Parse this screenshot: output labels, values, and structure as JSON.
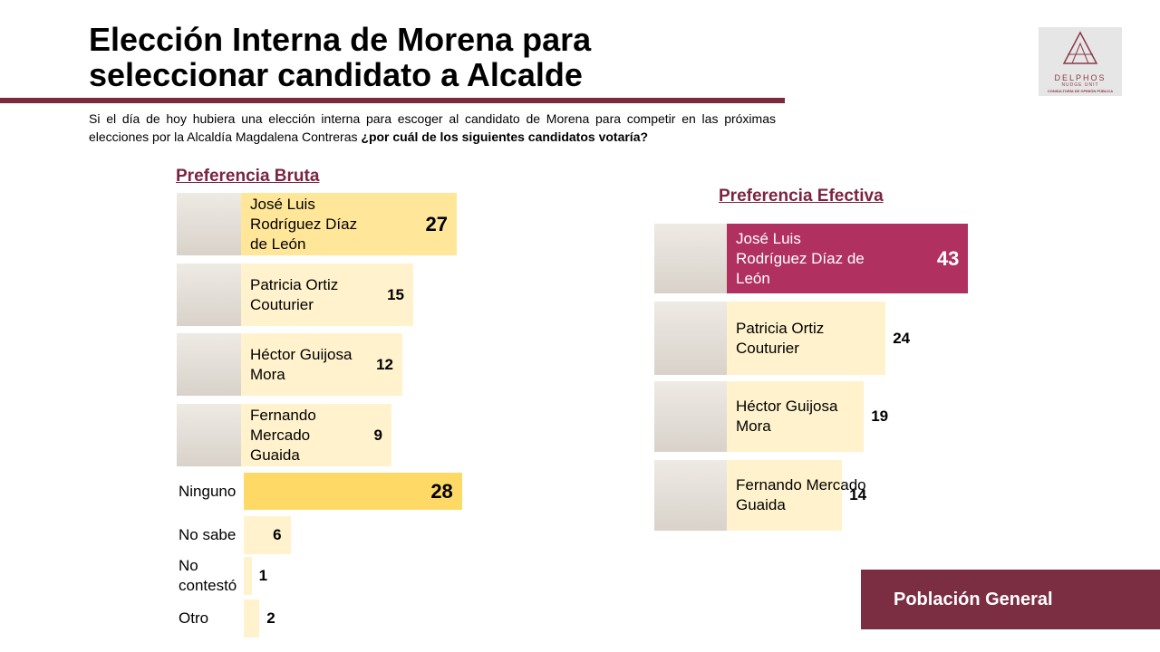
{
  "header": {
    "title": "Elección Interna de Morena para seleccionar candidato a Alcalde",
    "question": "Si el día de hoy hubiera una elección interna para escoger al candidato de Morena para competir en las próximas elecciones por la Alcaldía Magdalena Contreras",
    "question_bold": "¿por cuál de los siguientes candidatos votaría?"
  },
  "logo": {
    "name": "DELPHOS",
    "tagline": "NUDGE UNIT",
    "subtitle": "CONSULTORÍA DE OPINIÓN PÚBLICA"
  },
  "footer": "Población General",
  "chart_data": [
    {
      "type": "bar",
      "orientation": "horizontal",
      "title": "Preferencia Bruta",
      "categories": [
        "José Luis Rodríguez Díaz de León",
        "Patricia Ortiz Couturier",
        "Héctor Guijosa Mora",
        "Fernando Mercado Guaida",
        "Ninguno",
        "No sabe",
        "No contestó",
        "Otro"
      ],
      "values": [
        27,
        15,
        12,
        9,
        28,
        6,
        1,
        2
      ],
      "colors": [
        "#ffe699",
        "#fff2cc",
        "#fff2cc",
        "#fff2cc",
        "#ffd966",
        "#fff2cc",
        "#fff2cc",
        "#fff2cc"
      ]
    },
    {
      "type": "bar",
      "orientation": "horizontal",
      "title": "Preferencia Efectiva",
      "categories": [
        "José Luis Rodríguez Díaz de León",
        "Patricia Ortiz Couturier",
        "Héctor Guijosa Mora",
        "Fernando Mercado Guaida"
      ],
      "values": [
        43,
        24,
        19,
        14
      ],
      "colors": [
        "#b03060",
        "#fff2cc",
        "#fff2cc",
        "#fff2cc"
      ]
    }
  ]
}
